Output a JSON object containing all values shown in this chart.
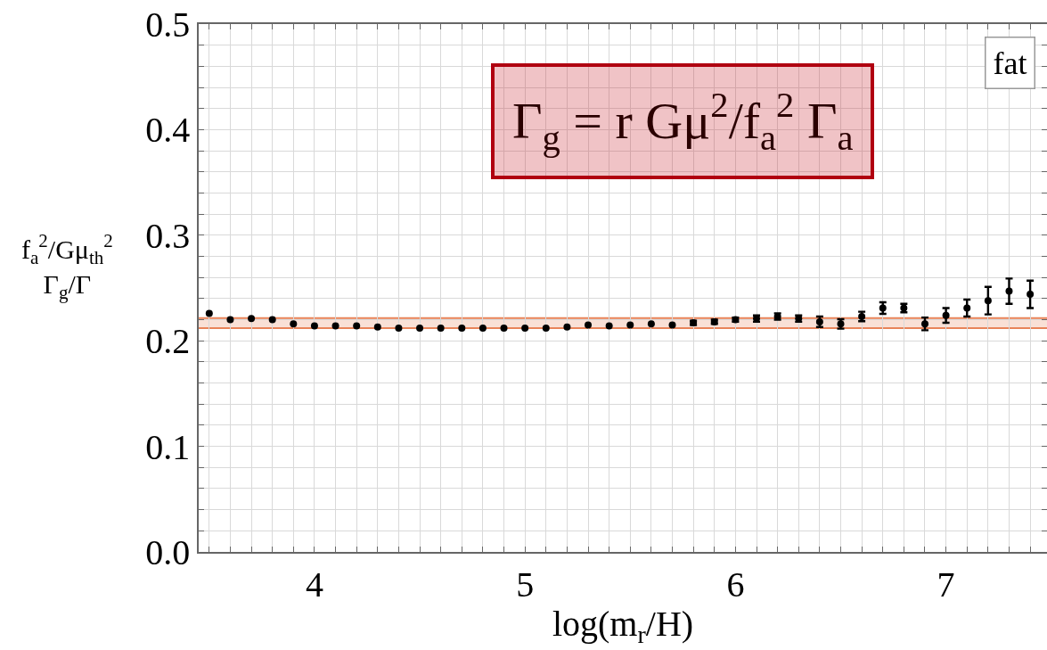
{
  "chart_data": {
    "type": "scatter",
    "xlabel": "log(m$_{r}$/H)",
    "ylabel": "f$_{a}$$^{2}$/Gμ$_{th}$$^{2}$ Γ$_{g}$/Γ",
    "annotations": [
      "Γ$_{g}$ = r Gμ$^{2}$/f$_{a}$$^{2}$ Γ$_{a}$",
      "fat"
    ],
    "x": [
      3.5,
      3.6,
      3.7,
      3.8,
      3.9,
      4.0,
      4.1,
      4.2,
      4.3,
      4.4,
      4.5,
      4.6,
      4.7,
      4.8,
      4.9,
      5.0,
      5.1,
      5.2,
      5.3,
      5.4,
      5.5,
      5.6,
      5.7,
      5.8,
      5.9,
      6.0,
      6.1,
      6.2,
      6.3,
      6.4,
      6.5,
      6.6,
      6.7,
      6.8,
      6.9,
      7.0,
      7.1,
      7.2,
      7.3,
      7.4
    ],
    "values": [
      0.226,
      0.22,
      0.221,
      0.22,
      0.216,
      0.214,
      0.214,
      0.214,
      0.213,
      0.212,
      0.212,
      0.212,
      0.212,
      0.212,
      0.212,
      0.212,
      0.212,
      0.213,
      0.215,
      0.214,
      0.215,
      0.216,
      0.215,
      0.217,
      0.218,
      0.22,
      0.221,
      0.223,
      0.221,
      0.218,
      0.216,
      0.223,
      0.231,
      0.231,
      0.216,
      0.224,
      0.231,
      0.238,
      0.247,
      0.244
    ],
    "errors": [
      null,
      null,
      null,
      null,
      null,
      null,
      null,
      null,
      null,
      null,
      null,
      null,
      null,
      null,
      null,
      null,
      null,
      null,
      null,
      null,
      null,
      null,
      null,
      0.002,
      0.002,
      0.002,
      0.003,
      0.003,
      0.003,
      0.005,
      0.0045,
      0.0045,
      0.0055,
      0.004,
      0.006,
      0.007,
      0.008,
      0.013,
      0.012,
      0.013
    ],
    "color": "#000000",
    "marker": "circle",
    "bands": [
      {
        "axis": "y",
        "from": 0.212,
        "to": 0.2215,
        "color": "#e8845a"
      }
    ],
    "ref_lines": [
      {
        "axis": "y",
        "value": 0.212,
        "color": "#e8845a"
      },
      {
        "axis": "y",
        "value": 0.2215,
        "color": "#e8845a"
      }
    ],
    "xlim": [
      3.45,
      7.48
    ],
    "xticks": [
      {
        "value": 3.5,
        "label": null
      },
      {
        "value": 3.6,
        "label": null
      },
      {
        "value": 3.7,
        "label": null
      },
      {
        "value": 3.8,
        "label": null
      },
      {
        "value": 3.9,
        "label": null
      },
      4,
      {
        "value": 4.1,
        "label": null
      },
      {
        "value": 4.2,
        "label": null
      },
      {
        "value": 4.3,
        "label": null
      },
      {
        "value": 4.4,
        "label": null
      },
      {
        "value": 4.5,
        "label": null
      },
      {
        "value": 4.6,
        "label": null
      },
      {
        "value": 4.7,
        "label": null
      },
      {
        "value": 4.8,
        "label": null
      },
      {
        "value": 4.9,
        "label": null
      },
      5,
      {
        "value": 5.1,
        "label": null
      },
      {
        "value": 5.2,
        "label": null
      },
      {
        "value": 5.3,
        "label": null
      },
      {
        "value": 5.4,
        "label": null
      },
      {
        "value": 5.5,
        "label": null
      },
      {
        "value": 5.6,
        "label": null
      },
      {
        "value": 5.7,
        "label": null
      },
      {
        "value": 5.8,
        "label": null
      },
      {
        "value": 5.9,
        "label": null
      },
      6,
      {
        "value": 6.1,
        "label": null
      },
      {
        "value": 6.2,
        "label": null
      },
      {
        "value": 6.3,
        "label": null
      },
      {
        "value": 6.4,
        "label": null
      },
      {
        "value": 6.5,
        "label": null
      },
      {
        "value": 6.6,
        "label": null
      },
      {
        "value": 6.7,
        "label": null
      },
      {
        "value": 6.8,
        "label": null
      },
      {
        "value": 6.9,
        "label": null
      },
      7,
      {
        "value": 7.1,
        "label": null
      },
      {
        "value": 7.2,
        "label": null
      },
      {
        "value": 7.3,
        "label": null
      },
      {
        "value": 7.4,
        "label": null
      }
    ],
    "ylim": [
      0,
      0.5
    ],
    "yticks": [
      {
        "value": 0,
        "label": "0.0"
      },
      {
        "value": 0.02,
        "label": null
      },
      {
        "value": 0.04,
        "label": null
      },
      {
        "value": 0.06,
        "label": null
      },
      {
        "value": 0.08,
        "label": null
      },
      0.1,
      {
        "value": 0.12,
        "label": null
      },
      {
        "value": 0.14,
        "label": null
      },
      {
        "value": 0.16,
        "label": null
      },
      {
        "value": 0.18,
        "label": null
      },
      0.2,
      {
        "value": 0.22,
        "label": null
      },
      {
        "value": 0.24,
        "label": null
      },
      {
        "value": 0.26,
        "label": null
      },
      {
        "value": 0.28,
        "label": null
      },
      0.3,
      {
        "value": 0.32,
        "label": null
      },
      {
        "value": 0.34,
        "label": null
      },
      {
        "value": 0.36,
        "label": null
      },
      {
        "value": 0.38,
        "label": null
      },
      0.4,
      {
        "value": 0.42,
        "label": null
      },
      {
        "value": 0.44,
        "label": null
      },
      {
        "value": 0.46,
        "label": null
      },
      {
        "value": 0.48,
        "label": null
      },
      0.5
    ],
    "grid": true
  }
}
